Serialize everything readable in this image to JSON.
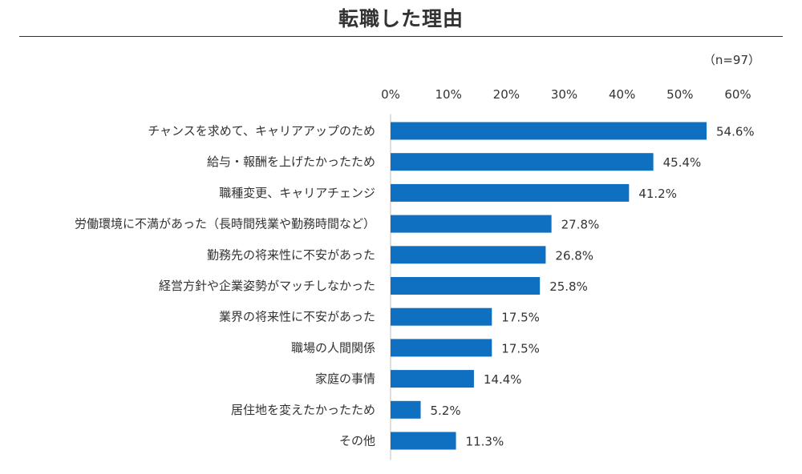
{
  "chart_data": {
    "type": "bar",
    "orientation": "horizontal",
    "title": "転職した理由",
    "note": "（n=97）",
    "xlim": [
      0,
      60
    ],
    "x_ticks": [
      "0%",
      "10%",
      "20%",
      "30%",
      "40%",
      "50%",
      "60%"
    ],
    "categories": [
      "チャンスを求めて、キャリアアップのため",
      "給与・報酬を上げたかったため",
      "職種変更、キャリアチェンジ",
      "労働環境に不満があった（長時間残業や勤務時間など）",
      "勤務先の将来性に不安があった",
      "経営方針や企業姿勢がマッチしなかった",
      "業界の将来性に不安があった",
      "職場の人間関係",
      "家庭の事情",
      "居住地を変えたかったため",
      "その他"
    ],
    "values": [
      54.6,
      45.4,
      41.2,
      27.8,
      26.8,
      25.8,
      17.5,
      17.5,
      14.4,
      5.2,
      11.3
    ],
    "value_labels": [
      "54.6%",
      "45.4%",
      "41.2%",
      "27.8%",
      "26.8%",
      "25.8%",
      "17.5%",
      "17.5%",
      "14.4%",
      "5.2%",
      "11.3%"
    ],
    "bar_color": "#0f6fc0",
    "grid": false,
    "legend": "none"
  }
}
